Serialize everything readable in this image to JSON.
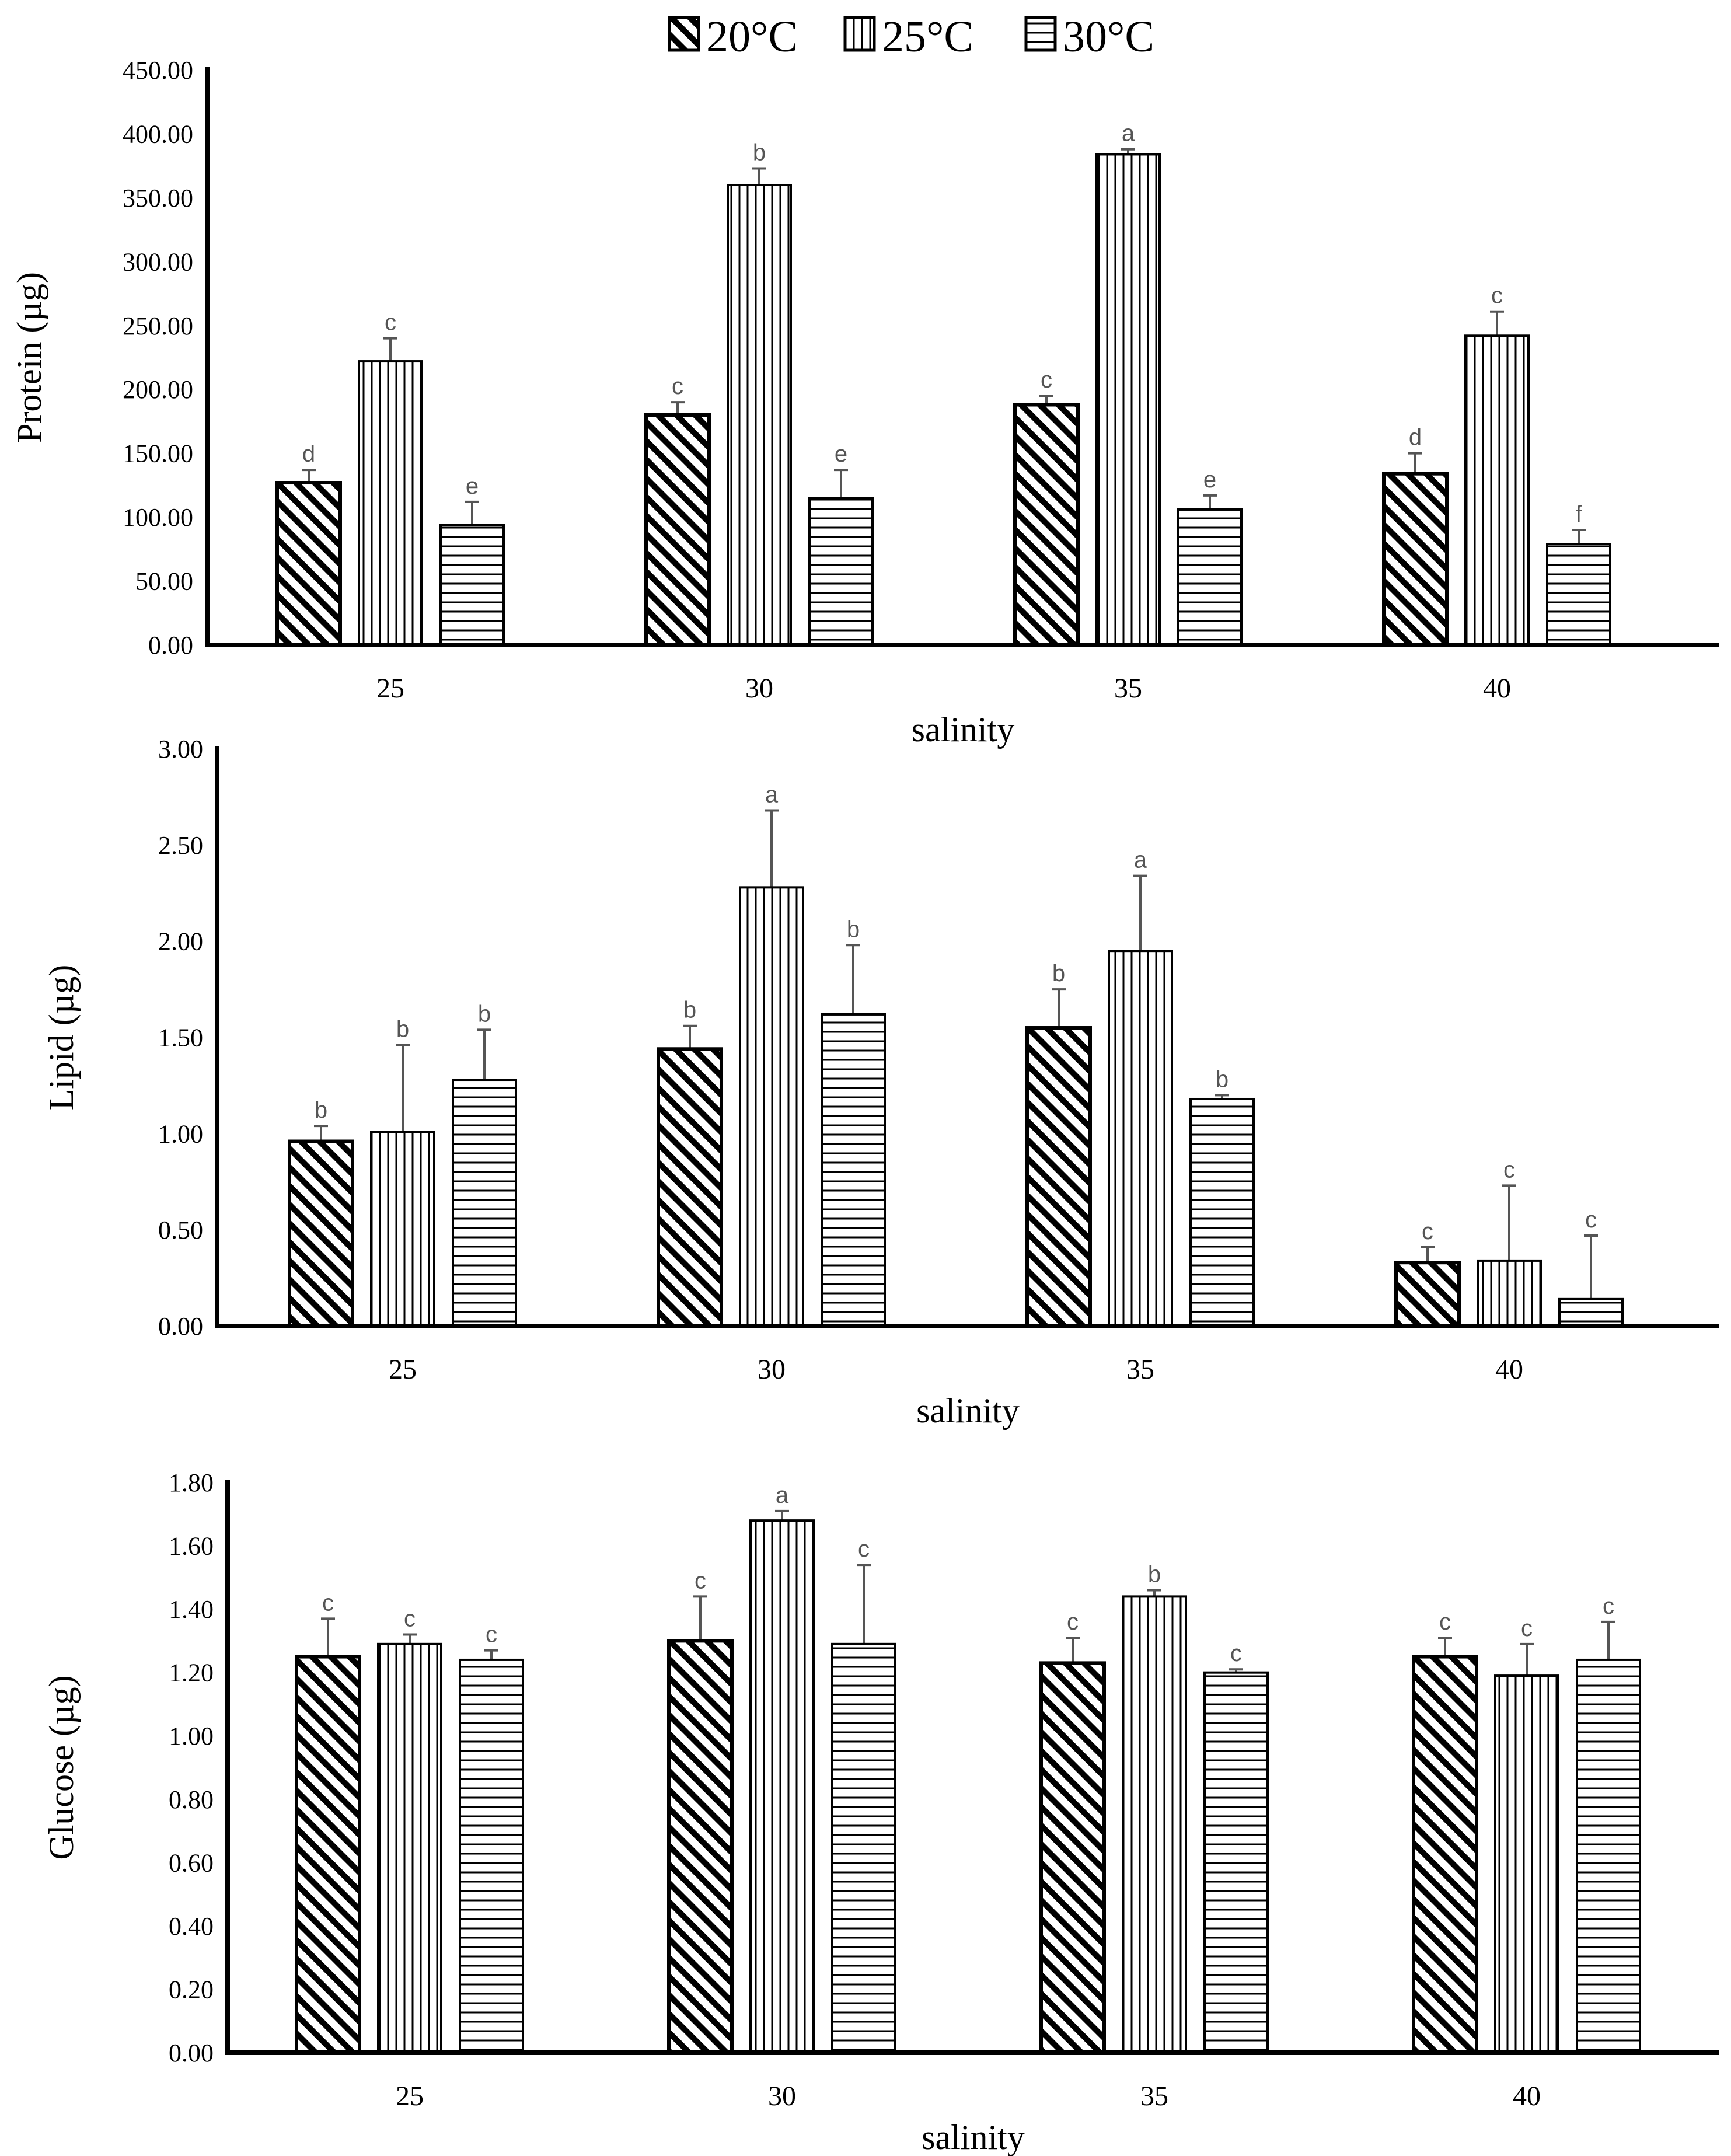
{
  "legend": [
    "20°C",
    "25°C",
    "30°C"
  ],
  "chart_data": [
    {
      "type": "bar",
      "xlabel": "salinity",
      "ylabel": "Protein (µg)",
      "categories": [
        "25",
        "30",
        "35",
        "40"
      ],
      "ylim": [
        0,
        450
      ],
      "yticks": [
        "0.00",
        "50.00",
        "100.00",
        "150.00",
        "200.00",
        "250.00",
        "300.00",
        "350.00",
        "400.00",
        "450.00"
      ],
      "series": [
        {
          "name": "20°C",
          "values": [
            127,
            180,
            188,
            134
          ],
          "errors": [
            10,
            10,
            7,
            16
          ],
          "letters": [
            "d",
            "c",
            "c",
            "d"
          ]
        },
        {
          "name": "25°C",
          "values": [
            222,
            360,
            384,
            242
          ],
          "errors": [
            18,
            13,
            4,
            19
          ],
          "letters": [
            "c",
            "b",
            "a",
            "c"
          ]
        },
        {
          "name": "30°C",
          "values": [
            94,
            115,
            106,
            79
          ],
          "errors": [
            18,
            22,
            11,
            11
          ],
          "letters": [
            "e",
            "e",
            "e",
            "f"
          ]
        }
      ]
    },
    {
      "type": "bar",
      "xlabel": "salinity",
      "ylabel": "Lipid (µg)",
      "categories": [
        "25",
        "30",
        "35",
        "40"
      ],
      "ylim": [
        0,
        3
      ],
      "yticks": [
        "0.00",
        "0.50",
        "1.00",
        "1.50",
        "2.00",
        "2.50",
        "3.00"
      ],
      "series": [
        {
          "name": "20°C",
          "values": [
            0.96,
            1.44,
            1.55,
            0.33
          ],
          "errors": [
            0.08,
            0.12,
            0.2,
            0.08
          ],
          "letters": [
            "b",
            "b",
            "b",
            "c"
          ]
        },
        {
          "name": "25°C",
          "values": [
            1.01,
            2.28,
            1.95,
            0.34
          ],
          "errors": [
            0.45,
            0.4,
            0.39,
            0.39
          ],
          "letters": [
            "b",
            "a",
            "a",
            "c"
          ]
        },
        {
          "name": "30°C",
          "values": [
            1.28,
            1.62,
            1.18,
            0.14
          ],
          "errors": [
            0.26,
            0.36,
            0.02,
            0.33
          ],
          "letters": [
            "b",
            "b",
            "b",
            "c"
          ]
        }
      ]
    },
    {
      "type": "bar",
      "xlabel": "salinity",
      "ylabel": "Glucose (µg)",
      "categories": [
        "25",
        "30",
        "35",
        "40"
      ],
      "ylim": [
        0,
        1.8
      ],
      "yticks": [
        "0.00",
        "0.20",
        "0.40",
        "0.60",
        "0.80",
        "1.00",
        "1.20",
        "1.40",
        "1.60",
        "1.80"
      ],
      "series": [
        {
          "name": "20°C",
          "values": [
            1.25,
            1.3,
            1.23,
            1.25
          ],
          "errors": [
            0.12,
            0.14,
            0.08,
            0.06
          ],
          "letters": [
            "c",
            "c",
            "c",
            "c"
          ]
        },
        {
          "name": "25°C",
          "values": [
            1.29,
            1.68,
            1.44,
            1.19
          ],
          "errors": [
            0.03,
            0.03,
            0.02,
            0.1
          ],
          "letters": [
            "c",
            "a",
            "b",
            "c"
          ]
        },
        {
          "name": "30°C",
          "values": [
            1.24,
            1.29,
            1.2,
            1.24
          ],
          "errors": [
            0.03,
            0.25,
            0.01,
            0.12
          ],
          "letters": [
            "c",
            "c",
            "c",
            "c"
          ]
        }
      ]
    }
  ]
}
